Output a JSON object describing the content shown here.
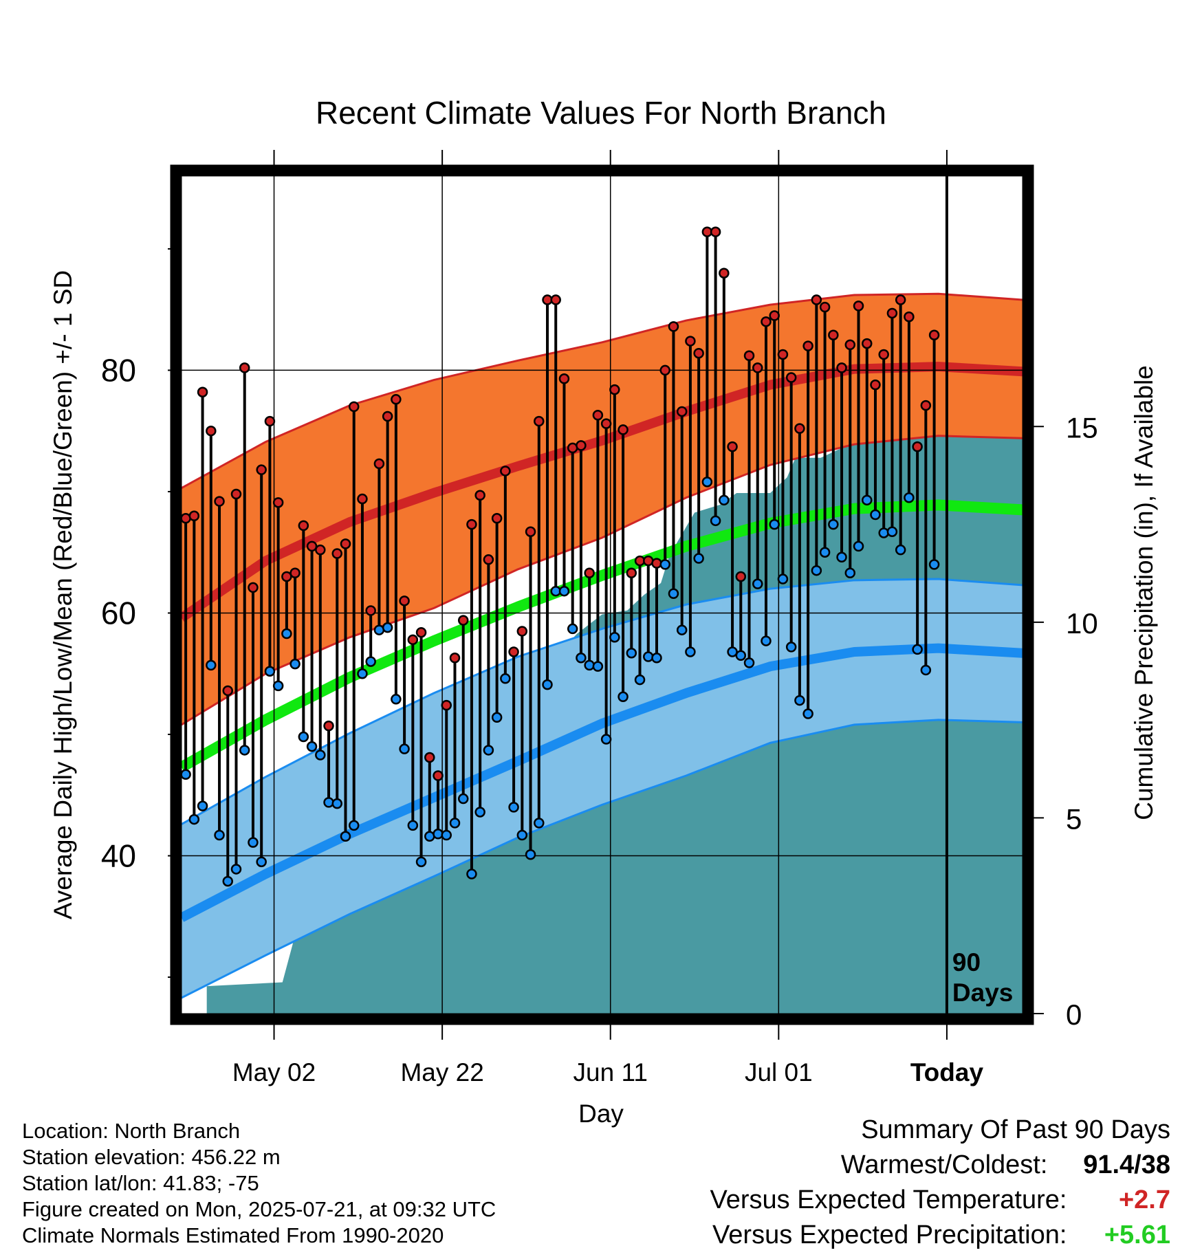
{
  "chart_data": {
    "type": "line",
    "title": "Recent Climate Values For North Branch",
    "xlabel": "Day",
    "ylabel": "Average Daily High/Low/Mean (Red/Blue/Green) +/- 1 SD",
    "y2label": "Cumulative Precipitation (in), If Available",
    "ylim": [
      27,
      96
    ],
    "y2lim": [
      0,
      21.4
    ],
    "xlim": [
      "2025-04-21",
      "2025-07-30"
    ],
    "x_ticks": [
      {
        "date": "2025-05-02",
        "label": "May 02"
      },
      {
        "date": "2025-05-22",
        "label": "May 22"
      },
      {
        "date": "2025-06-11",
        "label": "Jun 11"
      },
      {
        "date": "2025-07-01",
        "label": "Jul 01"
      },
      {
        "date": "2025-07-21",
        "label": "Today"
      }
    ],
    "y_ticks": [
      30,
      40,
      50,
      60,
      70,
      80,
      90
    ],
    "y_tick_labels": [
      "40",
      "60",
      "80"
    ],
    "y2_ticks": [
      0,
      5,
      10,
      15
    ],
    "y2_tick_labels": [
      "0",
      "5",
      "10",
      "15"
    ],
    "today_marker": {
      "date": "2025-07-21",
      "label": "90 Days"
    },
    "grid": true,
    "normals": {
      "dates": [
        "2025-04-21",
        "2025-05-01",
        "2025-05-11",
        "2025-05-21",
        "2025-05-31",
        "2025-06-10",
        "2025-06-20",
        "2025-06-30",
        "2025-07-10",
        "2025-07-20",
        "2025-07-30"
      ],
      "high_mean": [
        59.6,
        64.3,
        67.5,
        69.9,
        72.1,
        74.2,
        76.6,
        78.8,
        80.1,
        80.3,
        79.9
      ],
      "high_sd_upper": [
        70.3,
        74.1,
        77.1,
        79.2,
        80.8,
        82.3,
        84.1,
        85.4,
        86.2,
        86.3,
        85.8
      ],
      "high_sd_lower": [
        50.8,
        55.0,
        58.0,
        60.4,
        63.6,
        66.2,
        69.5,
        72.2,
        73.9,
        74.6,
        74.4
      ],
      "mean_normal": [
        47.3,
        51.2,
        54.7,
        57.7,
        60.5,
        63.1,
        65.5,
        67.4,
        68.6,
        68.9,
        68.5
      ],
      "low_mean": [
        34.9,
        38.5,
        41.8,
        44.8,
        47.8,
        50.9,
        53.4,
        55.6,
        56.8,
        57.1,
        56.7
      ],
      "low_sd_upper": [
        42.6,
        46.5,
        50.1,
        53.4,
        56.4,
        58.7,
        60.7,
        62.0,
        62.7,
        62.8,
        62.3
      ],
      "low_sd_lower": [
        28.3,
        31.8,
        35.2,
        38.3,
        41.5,
        44.2,
        46.6,
        49.3,
        50.8,
        51.2,
        51.0
      ]
    },
    "daily": {
      "start_date": "2025-04-21",
      "high": [
        67.8,
        68.0,
        78.2,
        75.0,
        69.2,
        53.6,
        69.8,
        80.2,
        62.1,
        71.8,
        75.8,
        69.1,
        63.0,
        63.3,
        67.2,
        65.5,
        65.2,
        50.7,
        64.9,
        65.7,
        77.0,
        69.4,
        60.2,
        72.3,
        76.2,
        77.6,
        61.0,
        57.8,
        58.4,
        48.1,
        46.6,
        52.4,
        56.3,
        59.4,
        67.3,
        69.7,
        64.4,
        67.8,
        71.7,
        56.8,
        58.5,
        66.7,
        75.8,
        85.8,
        85.8,
        79.3,
        73.6,
        73.8,
        63.3,
        76.3,
        75.6,
        78.4,
        75.1,
        63.3,
        64.3,
        64.3,
        64.1,
        80.0,
        83.6,
        76.6,
        82.4,
        81.4,
        91.4,
        91.4,
        88.0,
        73.7,
        63.0,
        81.2,
        80.2,
        84.0,
        84.5,
        81.3,
        79.4,
        75.2,
        82.0,
        85.8,
        85.2,
        82.9,
        80.2,
        82.1,
        85.3,
        82.2,
        78.8,
        81.3,
        84.7,
        85.8,
        84.4,
        73.7,
        77.1,
        82.9
      ],
      "low": [
        46.7,
        43.0,
        44.1,
        55.7,
        41.7,
        37.9,
        38.9,
        48.7,
        41.1,
        39.5,
        55.2,
        54.0,
        58.3,
        55.8,
        49.8,
        49.0,
        48.3,
        44.4,
        44.3,
        41.6,
        42.5,
        55.0,
        56.0,
        58.6,
        58.8,
        52.9,
        48.8,
        42.5,
        39.5,
        41.6,
        41.8,
        41.7,
        42.7,
        44.7,
        38.5,
        43.6,
        48.7,
        51.4,
        54.6,
        44.0,
        41.7,
        40.1,
        42.7,
        54.1,
        61.8,
        61.8,
        58.7,
        56.3,
        55.7,
        55.6,
        49.6,
        58.0,
        53.1,
        56.7,
        54.5,
        56.4,
        56.3,
        64.0,
        61.6,
        58.6,
        56.8,
        64.5,
        70.8,
        67.6,
        69.3,
        56.8,
        56.5,
        55.9,
        62.4,
        57.7,
        67.3,
        62.8,
        57.2,
        52.8,
        51.7,
        63.5,
        65.0,
        67.3,
        64.6,
        63.3,
        65.5,
        69.3,
        68.1,
        66.6,
        66.7,
        65.2,
        69.5,
        57.0,
        55.3,
        64.0
      ]
    },
    "cumulative_precip": {
      "dates": [
        "2025-04-21",
        "2025-04-24",
        "2025-04-24",
        "2025-05-03",
        "2025-05-05",
        "2025-05-07",
        "2025-05-08",
        "2025-05-10",
        "2025-05-11",
        "2025-05-14",
        "2025-05-18",
        "2025-05-25",
        "2025-05-29",
        "2025-06-01",
        "2025-06-02",
        "2025-06-04",
        "2025-06-07",
        "2025-06-10",
        "2025-06-13",
        "2025-06-15",
        "2025-06-17",
        "2025-06-18",
        "2025-06-21",
        "2025-06-24",
        "2025-06-26",
        "2025-06-30",
        "2025-07-02",
        "2025-07-03",
        "2025-07-06",
        "2025-07-11",
        "2025-07-13",
        "2025-07-14",
        "2025-07-15",
        "2025-07-16",
        "2025-07-30"
      ],
      "values": [
        0,
        0,
        0.7,
        0.8,
        2.4,
        3.3,
        3.5,
        4.8,
        4.9,
        5.1,
        5.5,
        6.5,
        6.6,
        8.8,
        9.0,
        9.0,
        9.7,
        10.2,
        10.3,
        10.7,
        11.0,
        11.7,
        12.8,
        13.0,
        13.3,
        13.3,
        13.7,
        14.2,
        14.2,
        14.7,
        14.8,
        15.0,
        15.4,
        17.9,
        17.9
      ],
      "color": "#4a9aa2"
    },
    "colors": {
      "high": "#d02525",
      "high_band": "#f4762e",
      "low": "#1a8cf0",
      "low_band": "#80c0e8",
      "mean": "#10e810",
      "precip": "#4a9aa2",
      "frame": "#000000"
    }
  },
  "info": {
    "location": "Location: North Branch",
    "elevation": "Station elevation: 456.22 m",
    "latlon": "Station lat/lon: 41.83; -75",
    "created": "Figure created on Mon, 2025-07-21, at 09:32 UTC",
    "normals": "Climate Normals Estimated From 1990-2020"
  },
  "summary": {
    "title": "Summary Of Past 90 Days",
    "warmest_label": "Warmest/Coldest:",
    "warmest_value": "91.4/38",
    "temp_label": "Versus Expected Temperature:",
    "temp_value": "+2.7",
    "temp_color": "#d02525",
    "precip_label": "Versus Expected Precipitation:",
    "precip_value": "+5.61",
    "precip_color": "#22cc22"
  }
}
